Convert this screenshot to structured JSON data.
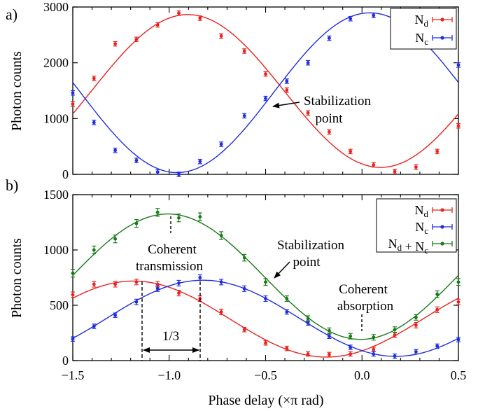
{
  "figure": {
    "xlabel": "Phase delay (×π rad)",
    "xticks": [
      "−1.5",
      "−1.0",
      "−0.5",
      "0.0",
      "0.5"
    ]
  },
  "chart_data": [
    {
      "type": "scatter",
      "panel_label": "a)",
      "ylabel": "Photon counts",
      "xlim": [
        -1.5,
        0.5
      ],
      "ylim": [
        0,
        3000
      ],
      "yticks": [
        "0",
        "1000",
        "2000",
        "3000"
      ],
      "legend_position": "top-right",
      "series": [
        {
          "name": "N_d",
          "color": "#e8231f",
          "x": [
            -1.5,
            -1.39,
            -1.28,
            -1.17,
            -1.06,
            -0.95,
            -0.84,
            -0.73,
            -0.61,
            -0.5,
            -0.39,
            -0.28,
            -0.17,
            -0.06,
            0.06,
            0.17,
            0.28,
            0.39,
            0.5
          ],
          "y": [
            1260,
            1720,
            2340,
            2420,
            2680,
            2890,
            2800,
            2480,
            2210,
            1800,
            1510,
            1100,
            760,
            410,
            170,
            50,
            130,
            410,
            870
          ],
          "err": [
            40,
            40,
            40,
            40,
            40,
            40,
            40,
            40,
            40,
            40,
            40,
            40,
            40,
            40,
            40,
            40,
            40,
            40,
            40
          ]
        },
        {
          "name": "N_c",
          "color": "#1f2de0",
          "x": [
            -1.5,
            -1.39,
            -1.28,
            -1.17,
            -1.06,
            -0.95,
            -0.84,
            -0.73,
            -0.61,
            -0.5,
            -0.39,
            -0.28,
            -0.17,
            -0.06,
            0.06,
            0.17,
            0.28,
            0.39,
            0.5
          ],
          "y": [
            1460,
            930,
            430,
            250,
            40,
            0,
            230,
            540,
            1050,
            1360,
            1670,
            2000,
            2440,
            2790,
            2850,
            2790,
            2700,
            2450,
            1960
          ],
          "err": [
            40,
            40,
            40,
            40,
            40,
            40,
            40,
            40,
            40,
            40,
            40,
            40,
            40,
            40,
            40,
            40,
            40,
            40,
            40
          ]
        }
      ],
      "annotations": [
        {
          "text_lines": [
            "Stabilization",
            "point"
          ]
        }
      ]
    },
    {
      "type": "scatter",
      "panel_label": "b)",
      "ylabel": "Photon counts",
      "xlim": [
        -1.5,
        0.5
      ],
      "ylim": [
        0,
        1500
      ],
      "yticks": [
        "0",
        "500",
        "1000",
        "1500"
      ],
      "legend_position": "top-right",
      "series": [
        {
          "name": "N_d",
          "color": "#e8231f",
          "x": [
            -1.5,
            -1.39,
            -1.28,
            -1.17,
            -1.06,
            -0.95,
            -0.84,
            -0.73,
            -0.61,
            -0.5,
            -0.39,
            -0.28,
            -0.17,
            -0.06,
            0.06,
            0.17,
            0.28,
            0.39,
            0.5
          ],
          "y": [
            595,
            690,
            690,
            710,
            690,
            610,
            560,
            440,
            280,
            160,
            110,
            60,
            55,
            60,
            100,
            230,
            320,
            460,
            530
          ],
          "err": [
            25,
            25,
            25,
            25,
            25,
            25,
            25,
            25,
            20,
            20,
            20,
            20,
            20,
            20,
            20,
            20,
            25,
            25,
            25
          ]
        },
        {
          "name": "N_c",
          "color": "#1f2de0",
          "x": [
            -1.5,
            -1.39,
            -1.28,
            -1.17,
            -1.06,
            -0.95,
            -0.84,
            -0.73,
            -0.61,
            -0.5,
            -0.39,
            -0.28,
            -0.17,
            -0.06,
            0.06,
            0.17,
            0.28,
            0.39,
            0.5
          ],
          "y": [
            195,
            310,
            410,
            530,
            650,
            700,
            750,
            710,
            650,
            560,
            440,
            340,
            220,
            120,
            60,
            40,
            80,
            130,
            190
          ],
          "err": [
            20,
            20,
            20,
            25,
            25,
            25,
            25,
            25,
            25,
            25,
            20,
            20,
            20,
            20,
            20,
            20,
            20,
            20,
            20
          ]
        },
        {
          "name": "N_d + N_c",
          "color": "#177a17",
          "x": [
            -1.5,
            -1.39,
            -1.28,
            -1.17,
            -1.06,
            -0.95,
            -0.84,
            -0.73,
            -0.61,
            -0.5,
            -0.39,
            -0.28,
            -0.17,
            -0.06,
            0.06,
            0.17,
            0.28,
            0.39,
            0.5
          ],
          "y": [
            790,
            1000,
            1100,
            1240,
            1340,
            1290,
            1300,
            1130,
            930,
            710,
            560,
            380,
            270,
            220,
            210,
            280,
            390,
            600,
            710
          ],
          "err": [
            35,
            35,
            35,
            35,
            35,
            35,
            35,
            35,
            30,
            30,
            25,
            25,
            25,
            25,
            25,
            25,
            25,
            30,
            30
          ]
        }
      ],
      "annotations": [
        {
          "text_lines": [
            "Coherent",
            "transmission"
          ]
        },
        {
          "text_lines": [
            "Stabilization",
            "point"
          ]
        },
        {
          "text_lines": [
            "Coherent",
            "absorption"
          ]
        },
        {
          "text_lines": [
            "1/3"
          ]
        }
      ]
    }
  ]
}
